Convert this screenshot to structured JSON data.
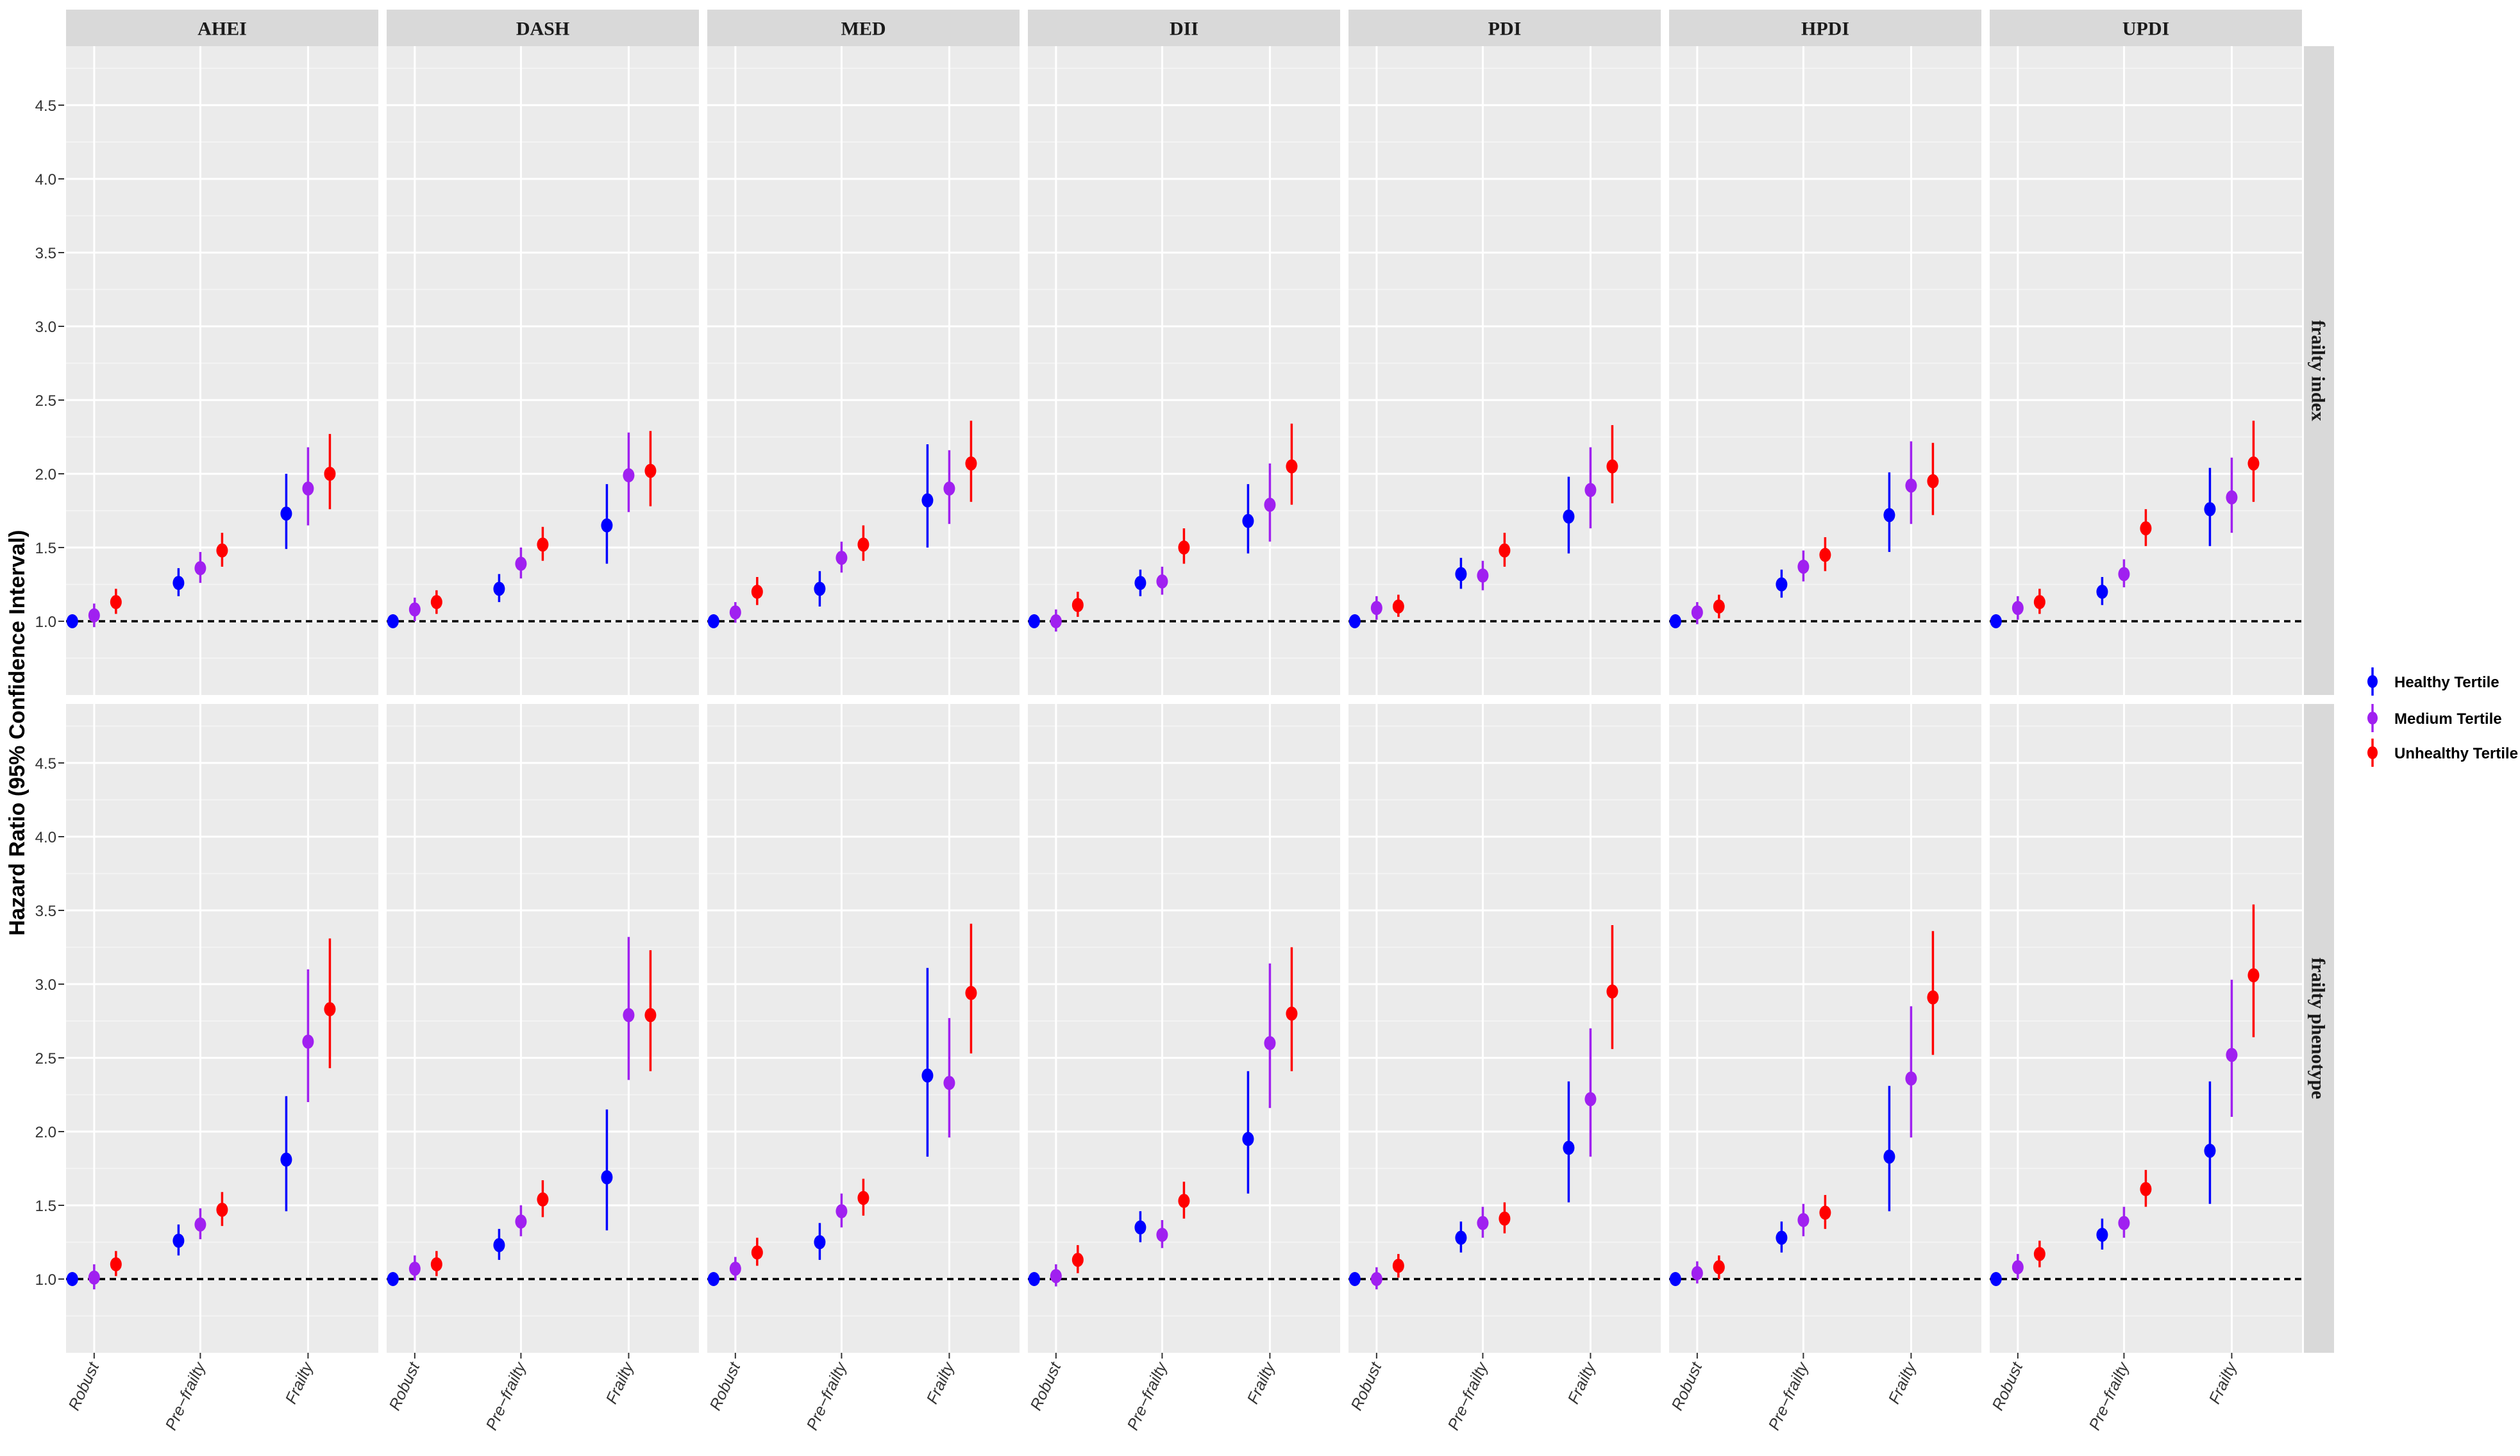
{
  "chart_data": {
    "type": "scatter",
    "subtype": "faceted point-range (hazard ratio with 95% CI)",
    "ylabel": "Hazard Ratio (95% Confidence Interval)",
    "xlabel": "",
    "title": "",
    "ylim": [
      0.5,
      4.9
    ],
    "yticks": [
      "1.0",
      "1.5",
      "2.0",
      "2.5",
      "3.0",
      "3.5",
      "4.0",
      "4.5"
    ],
    "ytick_values": [
      1.0,
      1.5,
      2.0,
      2.5,
      3.0,
      3.5,
      4.0,
      4.5
    ],
    "reference_line": 1.0,
    "grid": true,
    "legend_position": "right",
    "categories": [
      "Robust",
      "Pre-frailty",
      "Frailty"
    ],
    "category_labels": [
      "Robust",
      "Pre−frailty",
      "Frailty"
    ],
    "columns": [
      "AHEI",
      "DASH",
      "MED",
      "DII",
      "PDI",
      "HPDI",
      "UPDI"
    ],
    "rows": [
      "frailty index",
      "frailty phenotype"
    ],
    "series": [
      {
        "name": "Healthy Tertile",
        "color": "#0000ff"
      },
      {
        "name": "Medium Tertile",
        "color": "#a020f0"
      },
      {
        "name": "Unhealthy Tertile",
        "color": "#ff0000"
      }
    ],
    "panels": [
      {
        "row": "frailty index",
        "col": "AHEI",
        "data": [
          [
            [
              1.0,
              1.0,
              1.0
            ],
            [
              1.26,
              1.17,
              1.36
            ],
            [
              1.73,
              1.49,
              2.0
            ]
          ],
          [
            [
              1.04,
              0.96,
              1.12
            ],
            [
              1.36,
              1.26,
              1.47
            ],
            [
              1.9,
              1.65,
              2.18
            ]
          ],
          [
            [
              1.13,
              1.05,
              1.22
            ],
            [
              1.48,
              1.37,
              1.6
            ],
            [
              2.0,
              1.76,
              2.27
            ]
          ]
        ]
      },
      {
        "row": "frailty index",
        "col": "DASH",
        "data": [
          [
            [
              1.0,
              1.0,
              1.0
            ],
            [
              1.22,
              1.13,
              1.32
            ],
            [
              1.65,
              1.39,
              1.93
            ]
          ],
          [
            [
              1.08,
              1.0,
              1.16
            ],
            [
              1.39,
              1.29,
              1.5
            ],
            [
              1.99,
              1.74,
              2.28
            ]
          ],
          [
            [
              1.13,
              1.05,
              1.21
            ],
            [
              1.52,
              1.41,
              1.64
            ],
            [
              2.02,
              1.78,
              2.29
            ]
          ]
        ]
      },
      {
        "row": "frailty index",
        "col": "MED",
        "data": [
          [
            [
              1.0,
              1.0,
              1.0
            ],
            [
              1.22,
              1.1,
              1.34
            ],
            [
              1.82,
              1.5,
              2.2
            ]
          ],
          [
            [
              1.06,
              0.99,
              1.13
            ],
            [
              1.43,
              1.33,
              1.54
            ],
            [
              1.9,
              1.66,
              2.16
            ]
          ],
          [
            [
              1.2,
              1.11,
              1.3
            ],
            [
              1.52,
              1.41,
              1.65
            ],
            [
              2.07,
              1.81,
              2.36
            ]
          ]
        ]
      },
      {
        "row": "frailty index",
        "col": "DII",
        "data": [
          [
            [
              1.0,
              1.0,
              1.0
            ],
            [
              1.26,
              1.17,
              1.35
            ],
            [
              1.68,
              1.46,
              1.93
            ]
          ],
          [
            [
              1.0,
              0.93,
              1.08
            ],
            [
              1.27,
              1.18,
              1.37
            ],
            [
              1.79,
              1.54,
              2.07
            ]
          ],
          [
            [
              1.11,
              1.03,
              1.2
            ],
            [
              1.5,
              1.39,
              1.63
            ],
            [
              2.05,
              1.79,
              2.34
            ]
          ]
        ]
      },
      {
        "row": "frailty index",
        "col": "PDI",
        "data": [
          [
            [
              1.0,
              1.0,
              1.0
            ],
            [
              1.32,
              1.22,
              1.43
            ],
            [
              1.71,
              1.46,
              1.98
            ]
          ],
          [
            [
              1.09,
              1.01,
              1.17
            ],
            [
              1.31,
              1.21,
              1.41
            ],
            [
              1.89,
              1.63,
              2.18
            ]
          ],
          [
            [
              1.1,
              1.03,
              1.18
            ],
            [
              1.48,
              1.37,
              1.6
            ],
            [
              2.05,
              1.8,
              2.33
            ]
          ]
        ]
      },
      {
        "row": "frailty index",
        "col": "HPDI",
        "data": [
          [
            [
              1.0,
              1.0,
              1.0
            ],
            [
              1.25,
              1.16,
              1.35
            ],
            [
              1.72,
              1.47,
              2.01
            ]
          ],
          [
            [
              1.06,
              0.98,
              1.13
            ],
            [
              1.37,
              1.27,
              1.48
            ],
            [
              1.92,
              1.66,
              2.22
            ]
          ],
          [
            [
              1.1,
              1.02,
              1.18
            ],
            [
              1.45,
              1.34,
              1.57
            ],
            [
              1.95,
              1.72,
              2.21
            ]
          ]
        ]
      },
      {
        "row": "frailty index",
        "col": "UPDI",
        "data": [
          [
            [
              1.0,
              1.0,
              1.0
            ],
            [
              1.2,
              1.11,
              1.3
            ],
            [
              1.76,
              1.51,
              2.04
            ]
          ],
          [
            [
              1.09,
              1.01,
              1.17
            ],
            [
              1.32,
              1.23,
              1.42
            ],
            [
              1.84,
              1.6,
              2.11
            ]
          ],
          [
            [
              1.13,
              1.05,
              1.22
            ],
            [
              1.63,
              1.51,
              1.76
            ],
            [
              2.07,
              1.81,
              2.36
            ]
          ]
        ]
      },
      {
        "row": "frailty phenotype",
        "col": "AHEI",
        "data": [
          [
            [
              1.0,
              1.0,
              1.0
            ],
            [
              1.26,
              1.16,
              1.37
            ],
            [
              1.81,
              1.46,
              2.24
            ]
          ],
          [
            [
              1.01,
              0.93,
              1.1
            ],
            [
              1.37,
              1.27,
              1.48
            ],
            [
              2.61,
              2.2,
              3.1
            ]
          ],
          [
            [
              1.1,
              1.02,
              1.19
            ],
            [
              1.47,
              1.36,
              1.59
            ],
            [
              2.83,
              2.43,
              3.31
            ]
          ]
        ]
      },
      {
        "row": "frailty phenotype",
        "col": "DASH",
        "data": [
          [
            [
              1.0,
              1.0,
              1.0
            ],
            [
              1.23,
              1.13,
              1.34
            ],
            [
              1.69,
              1.33,
              2.15
            ]
          ],
          [
            [
              1.07,
              0.99,
              1.16
            ],
            [
              1.39,
              1.29,
              1.5
            ],
            [
              2.79,
              2.35,
              3.32
            ]
          ],
          [
            [
              1.1,
              1.02,
              1.19
            ],
            [
              1.54,
              1.42,
              1.67
            ],
            [
              2.79,
              2.41,
              3.23
            ]
          ]
        ]
      },
      {
        "row": "frailty phenotype",
        "col": "MED",
        "data": [
          [
            [
              1.0,
              1.0,
              1.0
            ],
            [
              1.25,
              1.13,
              1.38
            ],
            [
              2.38,
              1.83,
              3.11
            ]
          ],
          [
            [
              1.07,
              0.99,
              1.15
            ],
            [
              1.46,
              1.35,
              1.58
            ],
            [
              2.33,
              1.96,
              2.77
            ]
          ],
          [
            [
              1.18,
              1.09,
              1.28
            ],
            [
              1.55,
              1.43,
              1.68
            ],
            [
              2.94,
              2.53,
              3.41
            ]
          ]
        ]
      },
      {
        "row": "frailty phenotype",
        "col": "DII",
        "data": [
          [
            [
              1.0,
              1.0,
              1.0
            ],
            [
              1.35,
              1.25,
              1.46
            ],
            [
              1.95,
              1.58,
              2.41
            ]
          ],
          [
            [
              1.02,
              0.95,
              1.1
            ],
            [
              1.3,
              1.21,
              1.4
            ],
            [
              2.6,
              2.16,
              3.14
            ]
          ],
          [
            [
              1.13,
              1.04,
              1.23
            ],
            [
              1.53,
              1.41,
              1.66
            ],
            [
              2.8,
              2.41,
              3.25
            ]
          ]
        ]
      },
      {
        "row": "frailty phenotype",
        "col": "PDI",
        "data": [
          [
            [
              1.0,
              1.0,
              1.0
            ],
            [
              1.28,
              1.18,
              1.39
            ],
            [
              1.89,
              1.52,
              2.34
            ]
          ],
          [
            [
              1.0,
              0.93,
              1.08
            ],
            [
              1.38,
              1.28,
              1.49
            ],
            [
              2.22,
              1.83,
              2.7
            ]
          ],
          [
            [
              1.09,
              1.01,
              1.17
            ],
            [
              1.41,
              1.31,
              1.52
            ],
            [
              2.95,
              2.56,
              3.4
            ]
          ]
        ]
      },
      {
        "row": "frailty phenotype",
        "col": "HPDI",
        "data": [
          [
            [
              1.0,
              1.0,
              1.0
            ],
            [
              1.28,
              1.18,
              1.39
            ],
            [
              1.83,
              1.46,
              2.31
            ]
          ],
          [
            [
              1.04,
              0.97,
              1.12
            ],
            [
              1.4,
              1.29,
              1.51
            ],
            [
              2.36,
              1.96,
              2.85
            ]
          ],
          [
            [
              1.08,
              1.0,
              1.16
            ],
            [
              1.45,
              1.34,
              1.57
            ],
            [
              2.91,
              2.52,
              3.36
            ]
          ]
        ]
      },
      {
        "row": "frailty phenotype",
        "col": "UPDI",
        "data": [
          [
            [
              1.0,
              1.0,
              1.0
            ],
            [
              1.3,
              1.2,
              1.41
            ],
            [
              1.87,
              1.51,
              2.34
            ]
          ],
          [
            [
              1.08,
              1.0,
              1.17
            ],
            [
              1.38,
              1.28,
              1.49
            ],
            [
              2.52,
              2.1,
              3.03
            ]
          ],
          [
            [
              1.17,
              1.08,
              1.26
            ],
            [
              1.61,
              1.49,
              1.74
            ],
            [
              3.06,
              2.64,
              3.54
            ]
          ]
        ]
      }
    ]
  }
}
